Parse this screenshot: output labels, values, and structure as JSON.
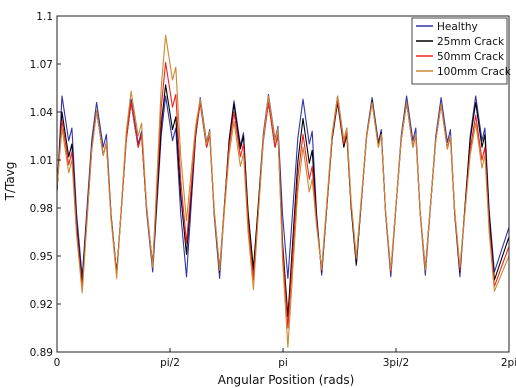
{
  "chart_data": {
    "type": "line",
    "xlabel": "Angular Position (rads)",
    "ylabel": "T/Tavg",
    "xlim": [
      0,
      6.2832
    ],
    "ylim": [
      0.89,
      1.1
    ],
    "x_ticks": [
      {
        "value": 0,
        "label": "0"
      },
      {
        "value": 1.5708,
        "label": "pi/2"
      },
      {
        "value": 3.1416,
        "label": "pi"
      },
      {
        "value": 4.7124,
        "label": "3pi/2"
      },
      {
        "value": 6.2832,
        "label": "2pi"
      }
    ],
    "y_ticks": [
      0.89,
      0.92,
      0.95,
      0.98,
      1.01,
      1.04,
      1.07,
      1.1
    ],
    "grid": false,
    "legend_position": "top-right",
    "peaks_x": [
      0.09,
      0.57,
      1.05,
      1.53,
      2.01,
      2.48,
      2.96,
      3.44,
      3.92,
      4.4,
      4.88,
      5.36,
      5.84
    ],
    "troughs_x": [
      0.35,
      0.83,
      1.33,
      1.8,
      2.26,
      2.73,
      3.21,
      3.68,
      4.16,
      4.64,
      5.12,
      5.6,
      6.08
    ],
    "series": [
      {
        "name": "Healthy",
        "color": "#3333aa",
        "peaks": [
          1.05,
          1.046,
          1.048,
          1.05,
          1.049,
          1.047,
          1.051,
          1.048,
          1.05,
          1.049,
          1.05,
          1.049,
          1.05
        ],
        "troughs": [
          0.937,
          0.938,
          0.94,
          0.937,
          0.936,
          0.938,
          0.936,
          0.938,
          0.944,
          0.937,
          0.938,
          0.937,
          0.94
        ]
      },
      {
        "name": "25mm Crack",
        "color": "#000000",
        "peaks": [
          1.04,
          1.041,
          1.046,
          1.057,
          1.046,
          1.045,
          1.046,
          1.036,
          1.046,
          1.047,
          1.046,
          1.045,
          1.046
        ],
        "troughs": [
          0.932,
          0.939,
          0.944,
          0.951,
          0.94,
          0.942,
          0.912,
          0.94,
          0.945,
          0.94,
          0.941,
          0.94,
          0.935
        ]
      },
      {
        "name": "50mm Crack",
        "color": "#ee2222",
        "peaks": [
          1.035,
          1.041,
          1.046,
          1.071,
          1.046,
          1.04,
          1.046,
          1.026,
          1.048,
          1.046,
          1.046,
          1.045,
          1.038
        ],
        "troughs": [
          0.929,
          0.938,
          0.944,
          0.958,
          0.942,
          0.935,
          0.905,
          0.941,
          0.948,
          0.94,
          0.942,
          0.941,
          0.931
        ]
      },
      {
        "name": "100mm Crack",
        "color": "#cc8833",
        "peaks": [
          1.03,
          1.041,
          1.053,
          1.088,
          1.048,
          1.034,
          1.05,
          1.018,
          1.05,
          1.046,
          1.046,
          1.045,
          1.033
        ],
        "troughs": [
          0.927,
          0.936,
          0.943,
          0.972,
          0.941,
          0.929,
          0.893,
          0.942,
          0.949,
          0.941,
          0.941,
          0.943,
          0.928
        ]
      }
    ]
  }
}
